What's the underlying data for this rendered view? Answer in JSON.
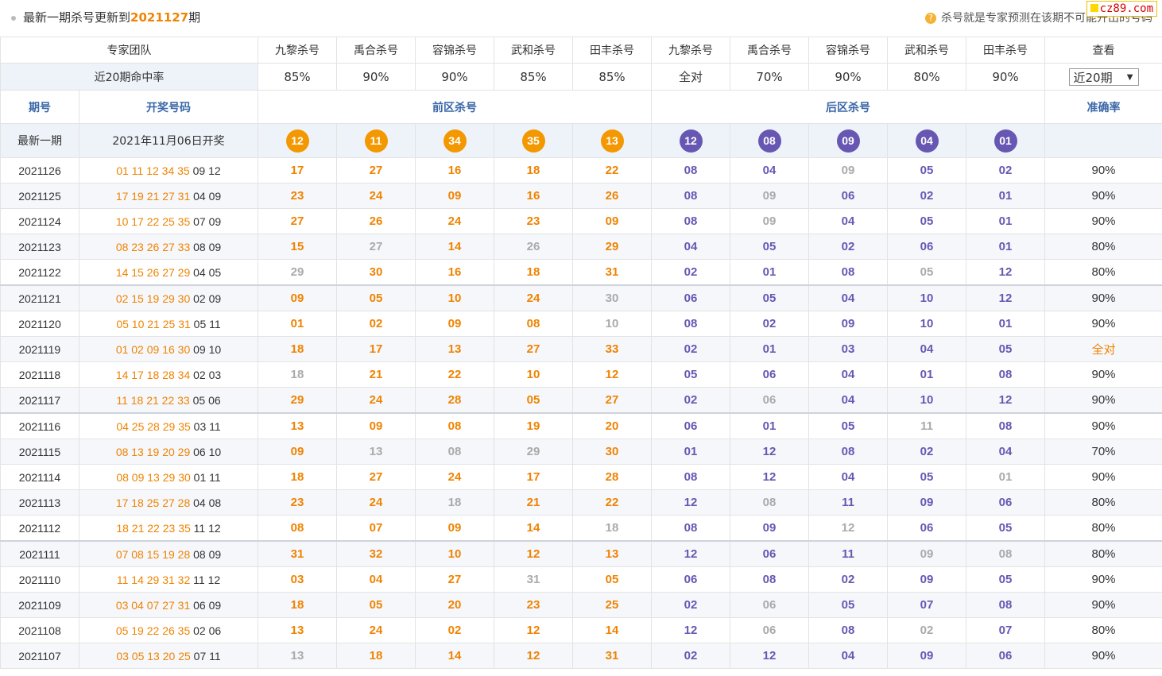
{
  "header": {
    "title_prefix": "最新一期杀号更新到",
    "title_issue": "2021127",
    "title_suffix": "期",
    "note": "杀号就是专家预测在该期不可能开出的号码",
    "watermark": "cz89.com"
  },
  "experts": {
    "label": "专家团队",
    "front": [
      "九黎杀号",
      "禹合杀号",
      "容锦杀号",
      "武和杀号",
      "田丰杀号"
    ],
    "back": [
      "九黎杀号",
      "禹合杀号",
      "容锦杀号",
      "武和杀号",
      "田丰杀号"
    ],
    "view_label": "查看"
  },
  "hitrate": {
    "label": "近20期命中率",
    "values": [
      "85%",
      "90%",
      "90%",
      "85%",
      "85%",
      "全对",
      "70%",
      "90%",
      "80%",
      "90%"
    ],
    "select_value": "近20期"
  },
  "columns": {
    "issue": "期号",
    "draw": "开奖号码",
    "front": "前区杀号",
    "back": "后区杀号",
    "accuracy": "准确率"
  },
  "latest": {
    "label": "最新一期",
    "date": "2021年11月06日开奖",
    "front": [
      "12",
      "11",
      "34",
      "35",
      "13"
    ],
    "back": [
      "12",
      "08",
      "09",
      "04",
      "01"
    ]
  },
  "colors": {
    "front_kill": "#f08300",
    "back_kill": "#6757b3",
    "missed": "#aaaaaa",
    "header_blue": "#3a67a8"
  },
  "rows": [
    {
      "issue": "2021126",
      "front_draw": "01 11 12 34 35",
      "back_draw": "09 12",
      "kills": [
        "17",
        "27",
        "16",
        "18",
        "22",
        "08",
        "04",
        "09",
        "05",
        "02"
      ],
      "miss": [
        0,
        0,
        0,
        0,
        0,
        0,
        0,
        1,
        0,
        0
      ],
      "acc": "90%"
    },
    {
      "issue": "2021125",
      "front_draw": "17 19 21 27 31",
      "back_draw": "04 09",
      "kills": [
        "23",
        "24",
        "09",
        "16",
        "26",
        "08",
        "09",
        "06",
        "02",
        "01"
      ],
      "miss": [
        0,
        0,
        0,
        0,
        0,
        0,
        1,
        0,
        0,
        0
      ],
      "acc": "90%"
    },
    {
      "issue": "2021124",
      "front_draw": "10 17 22 25 35",
      "back_draw": "07 09",
      "kills": [
        "27",
        "26",
        "24",
        "23",
        "09",
        "08",
        "09",
        "04",
        "05",
        "01"
      ],
      "miss": [
        0,
        0,
        0,
        0,
        0,
        0,
        1,
        0,
        0,
        0
      ],
      "acc": "90%"
    },
    {
      "issue": "2021123",
      "front_draw": "08 23 26 27 33",
      "back_draw": "08 09",
      "kills": [
        "15",
        "27",
        "14",
        "26",
        "29",
        "04",
        "05",
        "02",
        "06",
        "01"
      ],
      "miss": [
        0,
        1,
        0,
        1,
        0,
        0,
        0,
        0,
        0,
        0
      ],
      "acc": "80%"
    },
    {
      "issue": "2021122",
      "front_draw": "14 15 26 27 29",
      "back_draw": "04 05",
      "kills": [
        "29",
        "30",
        "16",
        "18",
        "31",
        "02",
        "01",
        "08",
        "05",
        "12"
      ],
      "miss": [
        1,
        0,
        0,
        0,
        0,
        0,
        0,
        0,
        1,
        0
      ],
      "acc": "80%"
    },
    {
      "issue": "2021121",
      "front_draw": "02 15 19 29 30",
      "back_draw": "02 09",
      "kills": [
        "09",
        "05",
        "10",
        "24",
        "30",
        "06",
        "05",
        "04",
        "10",
        "12"
      ],
      "miss": [
        0,
        0,
        0,
        0,
        1,
        0,
        0,
        0,
        0,
        0
      ],
      "acc": "90%"
    },
    {
      "issue": "2021120",
      "front_draw": "05 10 21 25 31",
      "back_draw": "05 11",
      "kills": [
        "01",
        "02",
        "09",
        "08",
        "10",
        "08",
        "02",
        "09",
        "10",
        "01"
      ],
      "miss": [
        0,
        0,
        0,
        0,
        1,
        0,
        0,
        0,
        0,
        0
      ],
      "acc": "90%"
    },
    {
      "issue": "2021119",
      "front_draw": "01 02 09 16 30",
      "back_draw": "09 10",
      "kills": [
        "18",
        "17",
        "13",
        "27",
        "33",
        "02",
        "01",
        "03",
        "04",
        "05"
      ],
      "miss": [
        0,
        0,
        0,
        0,
        0,
        0,
        0,
        0,
        0,
        0
      ],
      "acc": "全对"
    },
    {
      "issue": "2021118",
      "front_draw": "14 17 18 28 34",
      "back_draw": "02 03",
      "kills": [
        "18",
        "21",
        "22",
        "10",
        "12",
        "05",
        "06",
        "04",
        "01",
        "08"
      ],
      "miss": [
        1,
        0,
        0,
        0,
        0,
        0,
        0,
        0,
        0,
        0
      ],
      "acc": "90%"
    },
    {
      "issue": "2021117",
      "front_draw": "11 18 21 22 33",
      "back_draw": "05 06",
      "kills": [
        "29",
        "24",
        "28",
        "05",
        "27",
        "02",
        "06",
        "04",
        "10",
        "12"
      ],
      "miss": [
        0,
        0,
        0,
        0,
        0,
        0,
        1,
        0,
        0,
        0
      ],
      "acc": "90%"
    },
    {
      "issue": "2021116",
      "front_draw": "04 25 28 29 35",
      "back_draw": "03 11",
      "kills": [
        "13",
        "09",
        "08",
        "19",
        "20",
        "06",
        "01",
        "05",
        "11",
        "08"
      ],
      "miss": [
        0,
        0,
        0,
        0,
        0,
        0,
        0,
        0,
        1,
        0
      ],
      "acc": "90%"
    },
    {
      "issue": "2021115",
      "front_draw": "08 13 19 20 29",
      "back_draw": "06 10",
      "kills": [
        "09",
        "13",
        "08",
        "29",
        "30",
        "01",
        "12",
        "08",
        "02",
        "04"
      ],
      "miss": [
        0,
        1,
        1,
        1,
        0,
        0,
        0,
        0,
        0,
        0
      ],
      "acc": "70%"
    },
    {
      "issue": "2021114",
      "front_draw": "08 09 13 29 30",
      "back_draw": "01 11",
      "kills": [
        "18",
        "27",
        "24",
        "17",
        "28",
        "08",
        "12",
        "04",
        "05",
        "01"
      ],
      "miss": [
        0,
        0,
        0,
        0,
        0,
        0,
        0,
        0,
        0,
        1
      ],
      "acc": "90%"
    },
    {
      "issue": "2021113",
      "front_draw": "17 18 25 27 28",
      "back_draw": "04 08",
      "kills": [
        "23",
        "24",
        "18",
        "21",
        "22",
        "12",
        "08",
        "11",
        "09",
        "06"
      ],
      "miss": [
        0,
        0,
        1,
        0,
        0,
        0,
        1,
        0,
        0,
        0
      ],
      "acc": "80%"
    },
    {
      "issue": "2021112",
      "front_draw": "18 21 22 23 35",
      "back_draw": "11 12",
      "kills": [
        "08",
        "07",
        "09",
        "14",
        "18",
        "08",
        "09",
        "12",
        "06",
        "05"
      ],
      "miss": [
        0,
        0,
        0,
        0,
        1,
        0,
        0,
        1,
        0,
        0
      ],
      "acc": "80%"
    },
    {
      "issue": "2021111",
      "front_draw": "07 08 15 19 28",
      "back_draw": "08 09",
      "kills": [
        "31",
        "32",
        "10",
        "12",
        "13",
        "12",
        "06",
        "11",
        "09",
        "08"
      ],
      "miss": [
        0,
        0,
        0,
        0,
        0,
        0,
        0,
        0,
        1,
        1
      ],
      "acc": "80%"
    },
    {
      "issue": "2021110",
      "front_draw": "11 14 29 31 32",
      "back_draw": "11 12",
      "kills": [
        "03",
        "04",
        "27",
        "31",
        "05",
        "06",
        "08",
        "02",
        "09",
        "05"
      ],
      "miss": [
        0,
        0,
        0,
        1,
        0,
        0,
        0,
        0,
        0,
        0
      ],
      "acc": "90%"
    },
    {
      "issue": "2021109",
      "front_draw": "03 04 07 27 31",
      "back_draw": "06 09",
      "kills": [
        "18",
        "05",
        "20",
        "23",
        "25",
        "02",
        "06",
        "05",
        "07",
        "08"
      ],
      "miss": [
        0,
        0,
        0,
        0,
        0,
        0,
        1,
        0,
        0,
        0
      ],
      "acc": "90%"
    },
    {
      "issue": "2021108",
      "front_draw": "05 19 22 26 35",
      "back_draw": "02 06",
      "kills": [
        "13",
        "24",
        "02",
        "12",
        "14",
        "12",
        "06",
        "08",
        "02",
        "07"
      ],
      "miss": [
        0,
        0,
        0,
        0,
        0,
        0,
        1,
        0,
        1,
        0
      ],
      "acc": "80%"
    },
    {
      "issue": "2021107",
      "front_draw": "03 05 13 20 25",
      "back_draw": "07 11",
      "kills": [
        "13",
        "18",
        "14",
        "12",
        "31",
        "02",
        "12",
        "04",
        "09",
        "06"
      ],
      "miss": [
        1,
        0,
        0,
        0,
        0,
        0,
        0,
        0,
        0,
        0
      ],
      "acc": "90%"
    }
  ]
}
